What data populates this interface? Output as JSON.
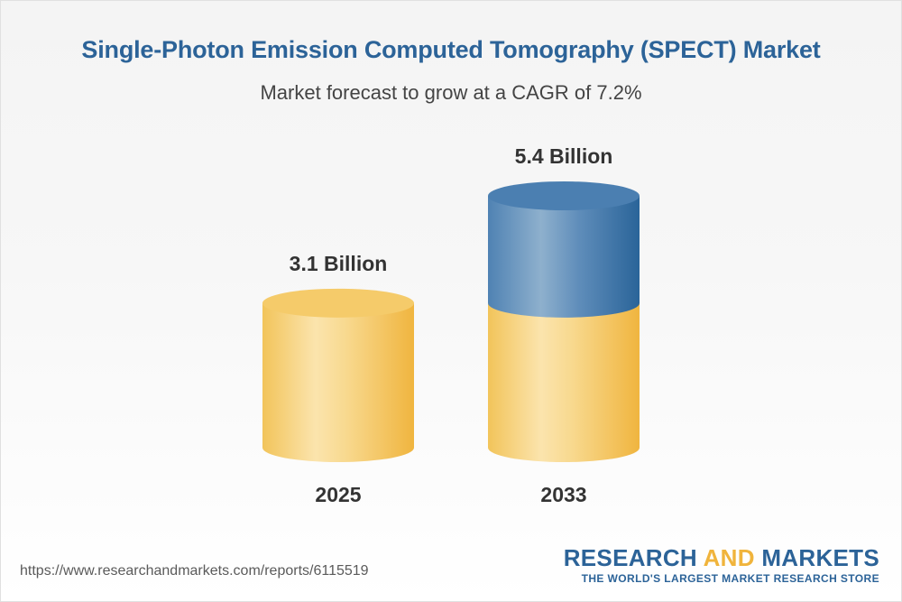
{
  "chart_data": {
    "type": "bar",
    "title": "Single-Photon Emission Computed Tomography (SPECT) Market",
    "subtitle": "Market forecast to grow at a CAGR of 7.2%",
    "categories": [
      "2025",
      "2033"
    ],
    "values": [
      3.1,
      5.4
    ],
    "data_labels": [
      "3.1 Billion",
      "5.4 Billion"
    ],
    "colors": {
      "base": "#f2c14e",
      "growth": "#2f6ea5"
    }
  },
  "footer": {
    "url": "https://www.researchandmarkets.com/reports/6115519"
  },
  "brand": {
    "part1": "RESEARCH ",
    "part2": "AND",
    "part3": " MARKETS",
    "tagline": "THE WORLD'S LARGEST MARKET RESEARCH STORE"
  }
}
